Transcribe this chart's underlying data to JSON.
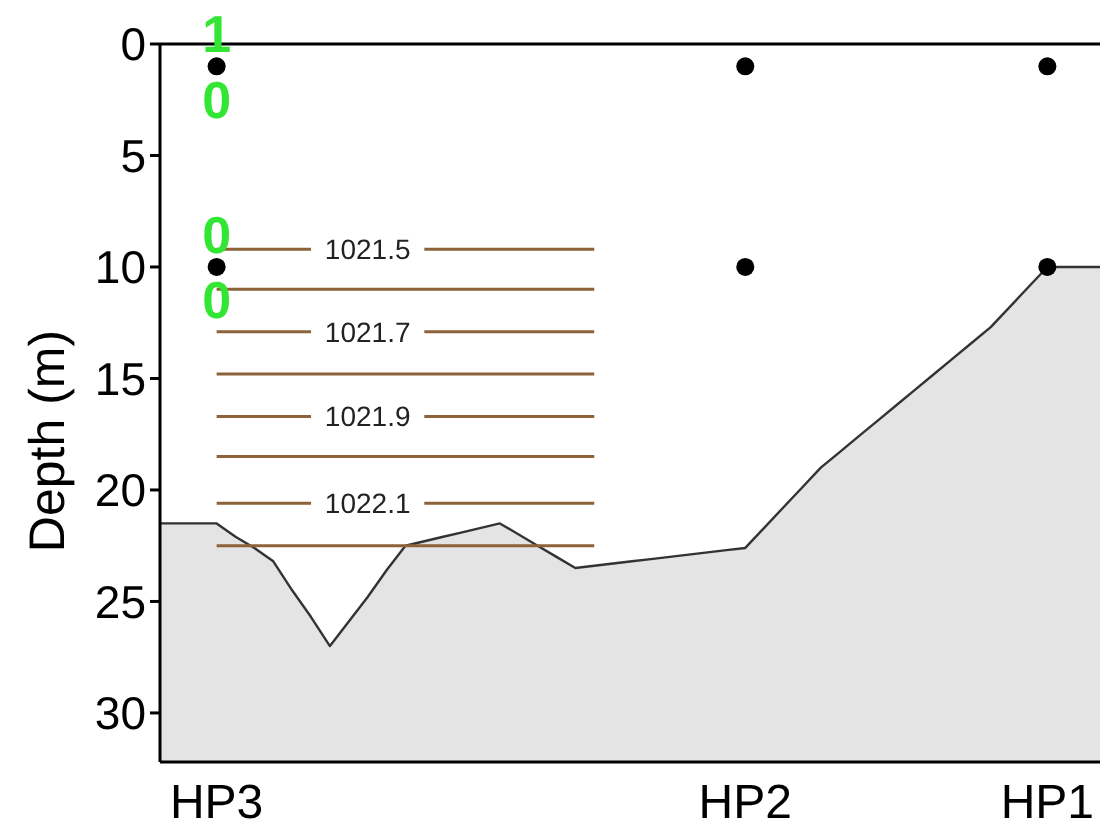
{
  "chart_data": {
    "type": "line",
    "ylabel": "Depth (m)",
    "ylim": [
      32.2,
      0
    ],
    "yticks": [
      0,
      5,
      10,
      15,
      20,
      25,
      30
    ],
    "categories": [
      null,
      null,
      null,
      "HP3",
      null,
      null,
      null,
      null,
      null,
      null,
      null,
      null,
      null,
      null,
      null,
      null,
      null,
      null,
      null,
      null,
      null,
      null,
      null,
      null,
      null,
      null,
      null,
      null,
      null,
      null,
      null,
      "HP2",
      null,
      null,
      null,
      null,
      null,
      null,
      null,
      null,
      null,
      null,
      null,
      null,
      null,
      null,
      null,
      "HP1",
      null,
      null,
      null
    ],
    "annotations": [
      {
        "text": "1",
        "x": "HP3",
        "y": 1
      },
      {
        "text": "0",
        "x": "HP3",
        "y": 1
      },
      {
        "text": "0",
        "x": "HP3",
        "y": 10
      },
      {
        "text": "0",
        "x": "HP3",
        "y": 10
      }
    ],
    "series": [
      {
        "color": "#333333",
        "values": [
          21.5,
          21.5,
          21.5,
          21.5,
          22.1,
          22.6,
          23.2,
          24.5,
          25.7,
          27.0,
          25.9,
          24.8,
          23.6,
          22.5,
          22.3,
          22.1,
          21.9,
          21.7,
          21.5,
          22.0,
          22.5,
          23.0,
          23.5,
          23.4,
          23.3,
          23.2,
          23.1,
          23.0,
          22.9,
          22.8,
          22.7,
          22.6,
          21.7,
          20.8,
          19.9,
          19.0,
          18.3,
          17.6,
          16.9,
          16.2,
          15.5,
          14.8,
          14.1,
          13.4,
          12.7,
          11.8,
          10.9,
          10.0,
          10.0,
          10.0,
          10.0
        ],
        "lower": [
          21.5,
          21.5,
          21.5,
          21.5,
          22.1,
          22.6,
          23.2,
          24.5,
          25.7,
          27.0,
          25.9,
          24.8,
          23.6,
          22.5,
          22.3,
          22.1,
          21.9,
          21.7,
          21.5,
          22.0,
          22.5,
          23.0,
          23.5,
          23.4,
          23.3,
          23.2,
          23.1,
          23.0,
          22.9,
          22.8,
          22.7,
          22.6,
          21.7,
          20.8,
          19.9,
          19.0,
          18.3,
          17.6,
          16.9,
          16.2,
          15.5,
          14.8,
          14.1,
          13.4,
          12.7,
          11.8,
          10.9,
          10.0,
          10.0,
          10.0,
          10.0
        ],
        "upper": [
          32.2,
          32.2,
          32.2,
          32.2,
          32.2,
          32.2,
          32.2,
          32.2,
          32.2,
          32.2,
          32.2,
          32.2,
          32.2,
          32.2,
          32.2,
          32.2,
          32.2,
          32.2,
          32.2,
          32.2,
          32.2,
          32.2,
          32.2,
          32.2,
          32.2,
          32.2,
          32.2,
          32.2,
          32.2,
          32.2,
          32.2,
          32.2,
          32.2,
          32.2,
          32.2,
          32.2,
          32.2,
          32.2,
          32.2,
          32.2,
          32.2,
          32.2,
          32.2,
          32.2,
          32.2,
          32.2,
          32.2,
          32.2,
          32.2,
          32.2,
          32.2
        ]
      },
      {
        "name": "1021.5",
        "color": "#8c6239",
        "values": [
          null,
          null,
          null,
          9.2,
          9.2,
          9.2,
          9.2,
          9.2,
          9.2,
          null,
          null,
          null,
          null,
          null,
          9.2,
          9.2,
          9.2,
          9.2,
          9.2,
          9.2,
          9.2,
          9.2,
          9.2,
          9.2,
          null,
          null,
          null,
          null,
          null,
          null,
          null,
          null,
          null,
          null,
          null,
          null,
          null,
          null,
          null,
          null,
          null,
          null,
          null,
          null,
          null,
          null,
          null,
          null,
          null,
          null,
          null
        ]
      },
      {
        "color": "#8c6239",
        "values": [
          null,
          null,
          null,
          11.0,
          11.0,
          11.0,
          11.0,
          11.0,
          11.0,
          11.0,
          11.0,
          11.0,
          11.0,
          11.0,
          11.0,
          11.0,
          11.0,
          11.0,
          11.0,
          11.0,
          11.0,
          11.0,
          11.0,
          11.0,
          null,
          null,
          null,
          null,
          null,
          null,
          null,
          null,
          null,
          null,
          null,
          null,
          null,
          null,
          null,
          null,
          null,
          null,
          null,
          null,
          null,
          null,
          null,
          null,
          null,
          null,
          null
        ]
      },
      {
        "name": "1021.7",
        "color": "#8c6239",
        "values": [
          null,
          null,
          null,
          12.9,
          12.9,
          12.9,
          12.9,
          12.9,
          12.9,
          null,
          null,
          null,
          null,
          null,
          12.9,
          12.9,
          12.9,
          12.9,
          12.9,
          12.9,
          12.9,
          12.9,
          12.9,
          12.9,
          null,
          null,
          null,
          null,
          null,
          null,
          null,
          null,
          null,
          null,
          null,
          null,
          null,
          null,
          null,
          null,
          null,
          null,
          null,
          null,
          null,
          null,
          null,
          null,
          null,
          null,
          null
        ]
      },
      {
        "color": "#8c6239",
        "values": [
          null,
          null,
          null,
          14.8,
          14.8,
          14.8,
          14.8,
          14.8,
          14.8,
          14.8,
          14.8,
          14.8,
          14.8,
          14.8,
          14.8,
          14.8,
          14.8,
          14.8,
          14.8,
          14.8,
          14.8,
          14.8,
          14.8,
          14.8,
          null,
          null,
          null,
          null,
          null,
          null,
          null,
          null,
          null,
          null,
          null,
          null,
          null,
          null,
          null,
          null,
          null,
          null,
          null,
          null,
          null,
          null,
          null,
          null,
          null,
          null,
          null
        ]
      },
      {
        "name": "1021.9",
        "color": "#8c6239",
        "values": [
          null,
          null,
          null,
          16.7,
          16.7,
          16.7,
          16.7,
          16.7,
          16.7,
          null,
          null,
          null,
          null,
          null,
          16.7,
          16.7,
          16.7,
          16.7,
          16.7,
          16.7,
          16.7,
          16.7,
          16.7,
          16.7,
          null,
          null,
          null,
          null,
          null,
          null,
          null,
          null,
          null,
          null,
          null,
          null,
          null,
          null,
          null,
          null,
          null,
          null,
          null,
          null,
          null,
          null,
          null,
          null,
          null,
          null,
          null
        ]
      },
      {
        "color": "#8c6239",
        "values": [
          null,
          null,
          null,
          18.5,
          18.5,
          18.5,
          18.5,
          18.5,
          18.5,
          18.5,
          18.5,
          18.5,
          18.5,
          18.5,
          18.5,
          18.5,
          18.5,
          18.5,
          18.5,
          18.5,
          18.5,
          18.5,
          18.5,
          18.5,
          null,
          null,
          null,
          null,
          null,
          null,
          null,
          null,
          null,
          null,
          null,
          null,
          null,
          null,
          null,
          null,
          null,
          null,
          null,
          null,
          null,
          null,
          null,
          null,
          null,
          null,
          null
        ]
      },
      {
        "name": "1022.1",
        "color": "#8c6239",
        "values": [
          null,
          null,
          null,
          20.6,
          20.6,
          20.6,
          20.6,
          20.6,
          20.6,
          null,
          null,
          null,
          null,
          null,
          20.6,
          20.6,
          20.6,
          20.6,
          20.6,
          20.6,
          20.6,
          20.6,
          20.6,
          20.6,
          null,
          null,
          null,
          null,
          null,
          null,
          null,
          null,
          null,
          null,
          null,
          null,
          null,
          null,
          null,
          null,
          null,
          null,
          null,
          null,
          null,
          null,
          null,
          null,
          null,
          null,
          null
        ]
      },
      {
        "color": "#8c6239",
        "values": [
          null,
          null,
          null,
          22.5,
          22.5,
          22.5,
          22.5,
          22.5,
          22.5,
          22.5,
          22.5,
          22.5,
          22.5,
          22.5,
          22.5,
          22.5,
          22.5,
          22.5,
          22.5,
          22.5,
          22.5,
          22.5,
          22.5,
          22.5,
          null,
          null,
          null,
          null,
          null,
          null,
          null,
          null,
          null,
          null,
          null,
          null,
          null,
          null,
          null,
          null,
          null,
          null,
          null,
          null,
          null,
          null,
          null,
          null,
          null,
          null,
          null
        ]
      },
      {
        "type": "scatter",
        "color": "#000000",
        "marker": "circle",
        "x": [
          "HP3",
          "HP3",
          "HP2",
          "HP2",
          "HP1",
          "HP1"
        ],
        "values": [
          1,
          10,
          1,
          10,
          1,
          10
        ]
      }
    ]
  }
}
